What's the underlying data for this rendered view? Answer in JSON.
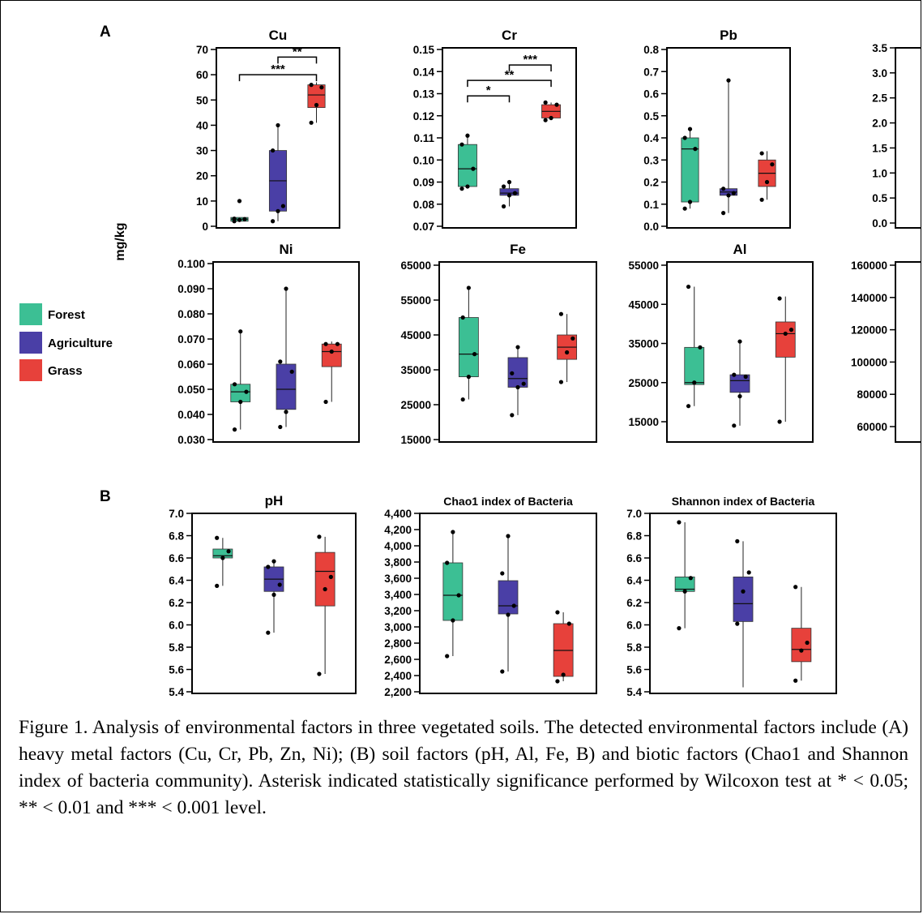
{
  "panel_labels": {
    "A": "A",
    "B": "B"
  },
  "y_axis_label": "mg/kg",
  "legend": [
    {
      "name": "Forest",
      "color": "#3cbf94"
    },
    {
      "name": "Agriculture",
      "color": "#4a3fa6"
    },
    {
      "name": "Grass",
      "color": "#e7413b"
    }
  ],
  "caption": "Figure 1. Analysis of environmental factors in three vegetated soils. The detected environmental factors include (A) heavy metal factors (Cu, Cr, Pb, Zn, Ni); (B) soil factors (pH, Al, Fe, B) and biotic factors (Chao1 and Shannon index of bacteria community). Asterisk indicated statistically significance performed by Wilcoxon test at * < 0.05; ** < 0.01 and *** < 0.001 level.",
  "chart_data": [
    {
      "id": "cu",
      "type": "box",
      "title": "Cu",
      "ylim": [
        0,
        70
      ],
      "yticks": [
        "0",
        "10",
        "20",
        "30",
        "40",
        "50",
        "60",
        "70"
      ],
      "series": [
        {
          "name": "Forest",
          "box": {
            "min": 2,
            "q1": 2,
            "median": 2.8,
            "q3": 3.5,
            "max": 3.5
          },
          "points": [
            2,
            2.5,
            2.8,
            3,
            10
          ]
        },
        {
          "name": "Agriculture",
          "box": {
            "min": 2,
            "q1": 6,
            "median": 18,
            "q3": 30,
            "max": 40
          },
          "points": [
            2,
            6,
            8,
            30,
            40
          ]
        },
        {
          "name": "Grass",
          "box": {
            "min": 41,
            "q1": 47,
            "median": 52,
            "q3": 56,
            "max": 57
          },
          "points": [
            41,
            48,
            55,
            56
          ]
        }
      ],
      "significance": [
        {
          "from": 1,
          "to": 2,
          "label": "**",
          "y": 67
        },
        {
          "from": 0,
          "to": 2,
          "label": "***",
          "y": 60
        }
      ]
    },
    {
      "id": "cr",
      "type": "box",
      "title": "Cr",
      "ylim": [
        0.07,
        0.15
      ],
      "yticks": [
        "0.07",
        "0.08",
        "0.09",
        "0.10",
        "0.11",
        "0.12",
        "0.13",
        "0.14",
        "0.15"
      ],
      "series": [
        {
          "name": "Forest",
          "box": {
            "min": 0.087,
            "q1": 0.088,
            "median": 0.096,
            "q3": 0.107,
            "max": 0.112
          },
          "points": [
            0.087,
            0.088,
            0.096,
            0.107,
            0.111
          ]
        },
        {
          "name": "Agriculture",
          "box": {
            "min": 0.079,
            "q1": 0.084,
            "median": 0.085,
            "q3": 0.087,
            "max": 0.09
          },
          "points": [
            0.079,
            0.084,
            0.085,
            0.088,
            0.09
          ]
        },
        {
          "name": "Grass",
          "box": {
            "min": 0.118,
            "q1": 0.119,
            "median": 0.122,
            "q3": 0.125,
            "max": 0.126
          },
          "points": [
            0.118,
            0.119,
            0.125,
            0.126
          ]
        }
      ],
      "significance": [
        {
          "from": 1,
          "to": 2,
          "label": "***",
          "y": 0.143
        },
        {
          "from": 0,
          "to": 2,
          "label": "**",
          "y": 0.136
        },
        {
          "from": 0,
          "to": 1,
          "label": "*",
          "y": 0.129
        }
      ]
    },
    {
      "id": "pb",
      "type": "box",
      "title": "Pb",
      "ylim": [
        0,
        0.8
      ],
      "yticks": [
        "0.0",
        "0.1",
        "0.2",
        "0.3",
        "0.4",
        "0.5",
        "0.6",
        "0.7",
        "0.8"
      ],
      "series": [
        {
          "name": "Forest",
          "box": {
            "min": 0.08,
            "q1": 0.11,
            "median": 0.35,
            "q3": 0.4,
            "max": 0.44
          },
          "points": [
            0.08,
            0.11,
            0.35,
            0.4,
            0.44
          ]
        },
        {
          "name": "Agriculture",
          "box": {
            "min": 0.06,
            "q1": 0.14,
            "median": 0.155,
            "q3": 0.17,
            "max": 0.66
          },
          "points": [
            0.06,
            0.14,
            0.15,
            0.17,
            0.66
          ]
        },
        {
          "name": "Grass",
          "box": {
            "min": 0.12,
            "q1": 0.18,
            "median": 0.24,
            "q3": 0.3,
            "max": 0.34
          },
          "points": [
            0.12,
            0.2,
            0.28,
            0.33
          ]
        }
      ]
    },
    {
      "id": "zn_partial",
      "type": "box",
      "title": "",
      "ylim": [
        0,
        3.5
      ],
      "yticks": [
        "0.0",
        "0.5",
        "1.0",
        "1.5",
        "2.0",
        "2.5",
        "3.0",
        "3.5"
      ],
      "series": []
    },
    {
      "id": "ni",
      "type": "box",
      "title": "Ni",
      "ylim": [
        0.03,
        0.1
      ],
      "yticks": [
        "0.030",
        "0.040",
        "0.050",
        "0.060",
        "0.070",
        "0.080",
        "0.090",
        "0.100"
      ],
      "series": [
        {
          "name": "Forest",
          "box": {
            "min": 0.034,
            "q1": 0.045,
            "median": 0.049,
            "q3": 0.052,
            "max": 0.073
          },
          "points": [
            0.034,
            0.045,
            0.049,
            0.052,
            0.073
          ]
        },
        {
          "name": "Agriculture",
          "box": {
            "min": 0.035,
            "q1": 0.042,
            "median": 0.05,
            "q3": 0.06,
            "max": 0.09
          },
          "points": [
            0.035,
            0.041,
            0.057,
            0.061,
            0.09
          ]
        },
        {
          "name": "Grass",
          "box": {
            "min": 0.045,
            "q1": 0.059,
            "median": 0.065,
            "q3": 0.068,
            "max": 0.069
          },
          "points": [
            0.045,
            0.065,
            0.068,
            0.068
          ]
        }
      ]
    },
    {
      "id": "fe",
      "type": "box",
      "title": "Fe",
      "ylim": [
        15000,
        65000
      ],
      "yticks": [
        "15000",
        "25000",
        "35000",
        "45000",
        "55000",
        "65000"
      ],
      "series": [
        {
          "name": "Forest",
          "box": {
            "min": 26500,
            "q1": 33000,
            "median": 39500,
            "q3": 50000,
            "max": 58500
          },
          "points": [
            26500,
            33000,
            39500,
            50000,
            58500
          ]
        },
        {
          "name": "Agriculture",
          "box": {
            "min": 22000,
            "q1": 30000,
            "median": 32500,
            "q3": 38500,
            "max": 42000
          },
          "points": [
            22000,
            30000,
            31000,
            34000,
            41500
          ]
        },
        {
          "name": "Grass",
          "box": {
            "min": 31500,
            "q1": 38000,
            "median": 41500,
            "q3": 45000,
            "max": 51000
          },
          "points": [
            31500,
            40000,
            44000,
            51000
          ]
        }
      ]
    },
    {
      "id": "al",
      "type": "box",
      "title": "Al",
      "ylim": [
        10000,
        55000
      ],
      "yticks": [
        "15000",
        "25000",
        "35000",
        "45000",
        "55000"
      ],
      "series": [
        {
          "name": "Forest",
          "box": {
            "min": 19000,
            "q1": 24500,
            "median": 25000,
            "q3": 34000,
            "max": 49500
          },
          "points": [
            19000,
            25000,
            34000,
            49500
          ]
        },
        {
          "name": "Agriculture",
          "box": {
            "min": 14000,
            "q1": 22500,
            "median": 25500,
            "q3": 27000,
            "max": 35500
          },
          "points": [
            14000,
            21500,
            26500,
            27000,
            35500
          ]
        },
        {
          "name": "Grass",
          "box": {
            "min": 15000,
            "q1": 31500,
            "median": 37500,
            "q3": 40500,
            "max": 47000
          },
          "points": [
            15000,
            37500,
            38500,
            46500
          ]
        }
      ]
    },
    {
      "id": "b_partial",
      "type": "box",
      "title": "",
      "ylim": [
        50000,
        160000
      ],
      "yticks": [
        "60000",
        "80000",
        "100000",
        "120000",
        "140000",
        "160000"
      ],
      "series": []
    },
    {
      "id": "ph",
      "type": "box",
      "title": "pH",
      "ylim": [
        5.4,
        7.0
      ],
      "yticks": [
        "5.4",
        "5.6",
        "5.8",
        "6.0",
        "6.2",
        "6.4",
        "6.6",
        "6.8",
        "7.0"
      ],
      "series": [
        {
          "name": "Forest",
          "box": {
            "min": 6.35,
            "q1": 6.6,
            "median": 6.62,
            "q3": 6.68,
            "max": 6.78
          },
          "points": [
            6.35,
            6.6,
            6.66,
            6.78
          ]
        },
        {
          "name": "Agriculture",
          "box": {
            "min": 5.93,
            "q1": 6.3,
            "median": 6.41,
            "q3": 6.52,
            "max": 6.57
          },
          "points": [
            5.93,
            6.27,
            6.36,
            6.52,
            6.57
          ]
        },
        {
          "name": "Grass",
          "box": {
            "min": 5.56,
            "q1": 6.17,
            "median": 6.48,
            "q3": 6.65,
            "max": 6.79
          },
          "points": [
            5.56,
            6.32,
            6.43,
            6.79
          ]
        }
      ]
    },
    {
      "id": "chao1",
      "type": "box",
      "title": "Chao1 index of Bacteria",
      "ylim": [
        2200,
        4400
      ],
      "yticks": [
        "2,200",
        "2,400",
        "2,600",
        "2,800",
        "3,000",
        "3,200",
        "3,400",
        "3,600",
        "3,800",
        "4,000",
        "4,200",
        "4,400"
      ],
      "series": [
        {
          "name": "Forest",
          "box": {
            "min": 2640,
            "q1": 3080,
            "median": 3390,
            "q3": 3790,
            "max": 4170
          },
          "points": [
            2640,
            3080,
            3390,
            3790,
            4170
          ]
        },
        {
          "name": "Agriculture",
          "box": {
            "min": 2450,
            "q1": 3160,
            "median": 3260,
            "q3": 3570,
            "max": 4120
          },
          "points": [
            2450,
            3150,
            3260,
            3660,
            4120
          ]
        },
        {
          "name": "Grass",
          "box": {
            "min": 2330,
            "q1": 2390,
            "median": 2710,
            "q3": 3040,
            "max": 3180
          },
          "points": [
            2330,
            2410,
            3040,
            3180
          ]
        }
      ]
    },
    {
      "id": "shannon",
      "type": "box",
      "title": "Shannon index of Bacteria",
      "ylim": [
        5.4,
        7.0
      ],
      "yticks": [
        "5.4",
        "5.6",
        "5.8",
        "6.0",
        "6.2",
        "6.4",
        "6.6",
        "6.8",
        "7.0"
      ],
      "series": [
        {
          "name": "Forest",
          "box": {
            "min": 5.97,
            "q1": 6.3,
            "median": 6.32,
            "q3": 6.43,
            "max": 6.92
          },
          "points": [
            5.97,
            6.3,
            6.42,
            6.92
          ]
        },
        {
          "name": "Agriculture",
          "box": {
            "min": 5.44,
            "q1": 6.03,
            "median": 6.19,
            "q3": 6.43,
            "max": 6.75
          },
          "points": [
            6.01,
            6.3,
            6.47,
            6.75
          ]
        },
        {
          "name": "Grass",
          "box": {
            "min": 5.5,
            "q1": 5.67,
            "median": 5.78,
            "q3": 5.97,
            "max": 6.34
          },
          "points": [
            5.5,
            5.77,
            5.84,
            6.34
          ]
        }
      ]
    }
  ]
}
